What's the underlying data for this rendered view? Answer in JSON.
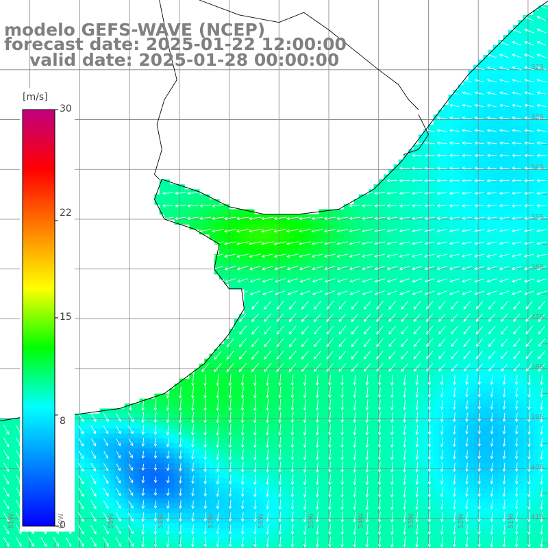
{
  "title": {
    "line1": "modelo GEFS-WAVE (NCEP)",
    "line2": "forecast date: 2025-01-22 12:00:00",
    "line3": "valid date: 2025-01-28 00:00:00"
  },
  "colorbar": {
    "unit": "[m/s]",
    "ticks": [
      "30",
      "22",
      "15",
      "8",
      "0"
    ],
    "tick_values": [
      30,
      22,
      15,
      8,
      0
    ],
    "range": [
      0,
      30
    ],
    "colors": [
      "#0000ff",
      "#0080ff",
      "#00ffff",
      "#00ff00",
      "#ffff00",
      "#ff8000",
      "#ff0000",
      "#c00080"
    ]
  },
  "lat_labels": [
    "32S",
    "33S",
    "34S",
    "35S",
    "36S",
    "37S",
    "38S",
    "39S",
    "40S",
    "41S"
  ],
  "lat_values": [
    -32,
    -33,
    -34,
    -35,
    -36,
    -37,
    -38,
    -39,
    -40,
    -41
  ],
  "lon_labels": [
    "61W",
    "60W",
    "59W",
    "58W",
    "57W",
    "56W",
    "55W",
    "54W",
    "53W",
    "52W",
    "51W"
  ],
  "lon_values": [
    -61,
    -60,
    -59,
    -58,
    -57,
    -56,
    -55,
    -54,
    -53,
    -52,
    -51
  ],
  "colors": {
    "background": "#ffffff",
    "grid": "#808080",
    "coastline": "#000000",
    "arrow": "#ffffff",
    "title": "#808080"
  },
  "map_extent": {
    "lon": [
      -61.6,
      -50.6
    ],
    "lat": [
      -41.6,
      -30.6
    ]
  }
}
